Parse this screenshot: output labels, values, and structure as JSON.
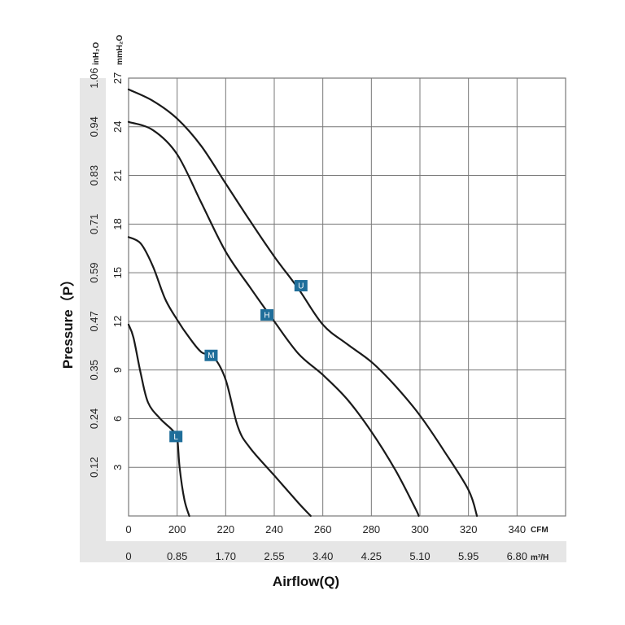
{
  "chart_data": {
    "type": "line",
    "xlabel": "Airflow(Q)",
    "ylabel": "Pressure（P）",
    "x_unit": "CFM",
    "x2_unit": "m³/H",
    "y_unit": "mmH₂O",
    "y2_unit": "inH₂O",
    "xlim": [
      180,
      360
    ],
    "ylim": [
      0,
      27
    ],
    "x_ticks": [
      "0",
      "200",
      "220",
      "240",
      "260",
      "280",
      "300",
      "320",
      "340"
    ],
    "x2_ticks": [
      "0",
      "0.85",
      "1.70",
      "2.55",
      "3.40",
      "4.25",
      "5.10",
      "5.95",
      "6.80"
    ],
    "y_ticks": [
      "3",
      "6",
      "9",
      "12",
      "15",
      "18",
      "21",
      "24",
      "27"
    ],
    "y2_ticks": [
      "0.12",
      "0.24",
      "0.35",
      "0.47",
      "0.59",
      "0.71",
      "0.83",
      "0.94",
      "1.06"
    ],
    "grid": true,
    "series": [
      {
        "name": "U",
        "points": [
          [
            180,
            26.3
          ],
          [
            190,
            25.6
          ],
          [
            200,
            24.5
          ],
          [
            210,
            22.8
          ],
          [
            220,
            20.5
          ],
          [
            230,
            18.2
          ],
          [
            240,
            16.0
          ],
          [
            250,
            14.0
          ],
          [
            260,
            11.8
          ],
          [
            270,
            10.6
          ],
          [
            280,
            9.5
          ],
          [
            290,
            8.0
          ],
          [
            300,
            6.2
          ],
          [
            310,
            4.0
          ],
          [
            320,
            1.6
          ],
          [
            323.5,
            0
          ]
        ],
        "label_at": [
          251,
          14.2
        ]
      },
      {
        "name": "H",
        "points": [
          [
            180,
            24.3
          ],
          [
            190,
            23.8
          ],
          [
            200,
            22.3
          ],
          [
            210,
            19.3
          ],
          [
            220,
            16.3
          ],
          [
            230,
            14.1
          ],
          [
            240,
            12.0
          ],
          [
            250,
            10.0
          ],
          [
            260,
            8.7
          ],
          [
            270,
            7.2
          ],
          [
            280,
            5.2
          ],
          [
            290,
            2.8
          ],
          [
            298,
            0.5
          ],
          [
            299.5,
            0
          ]
        ],
        "label_at": [
          237,
          12.4
        ]
      },
      {
        "name": "M",
        "points": [
          [
            180,
            17.2
          ],
          [
            185,
            16.8
          ],
          [
            190,
            15.4
          ],
          [
            195,
            13.4
          ],
          [
            200,
            12.1
          ],
          [
            205,
            11.0
          ],
          [
            210,
            10.1
          ],
          [
            215,
            9.8
          ],
          [
            220,
            8.4
          ],
          [
            225,
            5.5
          ],
          [
            230,
            4.2
          ],
          [
            240,
            2.5
          ],
          [
            250,
            0.8
          ],
          [
            255,
            0
          ]
        ],
        "label_at": [
          214,
          9.9
        ]
      },
      {
        "name": "L",
        "points": [
          [
            180,
            11.8
          ],
          [
            182,
            11.0
          ],
          [
            185,
            8.8
          ],
          [
            188,
            7.0
          ],
          [
            193,
            6.0
          ],
          [
            198,
            5.3
          ],
          [
            200,
            4.8
          ],
          [
            201,
            3.0
          ],
          [
            203,
            1.0
          ],
          [
            205,
            0
          ]
        ],
        "label_at": [
          199.5,
          4.9
        ]
      }
    ],
    "marker_color": "#1f6e9a",
    "line_color": "#1a1a1a",
    "grid_color": "#777777",
    "band_color": "#e6e6e6"
  }
}
